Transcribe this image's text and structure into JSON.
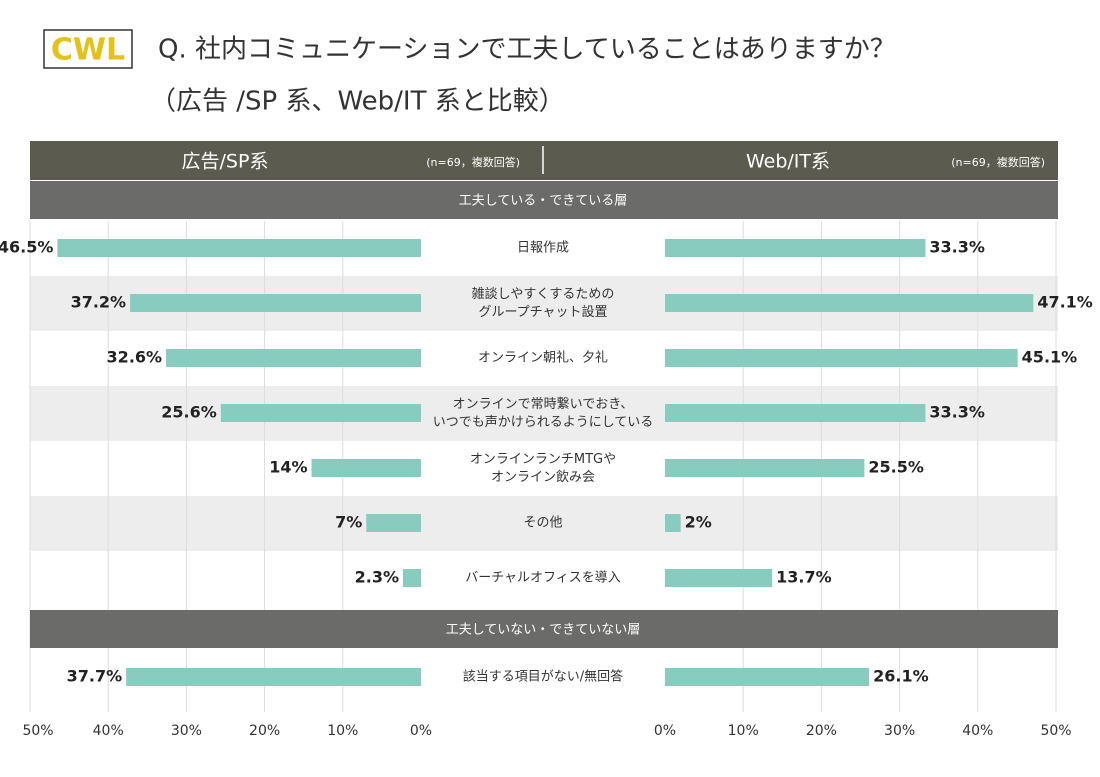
{
  "header": {
    "logo": "CWL",
    "title": "Q. 社内コミュニケーションで工夫していることはありますか？",
    "subtitle": "（広告 /SP 系、Web/IT 系と比較）"
  },
  "chart_data": {
    "type": "butterfly",
    "groups": [
      {
        "label": "工夫している・できている層",
        "categories": [
          "日報作成",
          "雑談しやすくするための\nグループチャット設置",
          "オンライン朝礼、夕礼",
          "オンラインで常時繋いでおき、\nいつでも声かけられるようにしている",
          "オンラインランチMTGや\nオンライン飲み会",
          "その他",
          "バーチャルオフィスを導入"
        ]
      },
      {
        "label": "工夫していない・できていない層",
        "categories": [
          "該当する項目がない/無回答"
        ]
      }
    ],
    "series": [
      {
        "name": "広告/SP系",
        "note": "(n=69，複数回答)",
        "color": "#88cbbf",
        "values": [
          46.5,
          37.2,
          32.6,
          25.6,
          14,
          7,
          2.3,
          37.7
        ],
        "value_labels": [
          "46.5%",
          "37.2%",
          "32.6%",
          "25.6%",
          "14%",
          "7%",
          "2.3%",
          "37.7%"
        ]
      },
      {
        "name": "Web/IT系",
        "note": "(n=69，複数回答)",
        "color": "#88cbbf",
        "values": [
          33.3,
          47.1,
          45.1,
          33.3,
          25.5,
          2,
          13.7,
          26.1
        ],
        "value_labels": [
          "33.3%",
          "47.1%",
          "45.1%",
          "33.3%",
          "25.5%",
          "2%",
          "13.7%",
          "26.1%"
        ]
      }
    ],
    "xlim": [
      0,
      50
    ],
    "xticks": [
      {
        "value": 0,
        "label": "0%"
      },
      {
        "value": 10,
        "label": "10%"
      },
      {
        "value": 20,
        "label": "20%"
      },
      {
        "value": 30,
        "label": "30%"
      },
      {
        "value": 40,
        "label": "40%"
      },
      {
        "value": 50,
        "label": "50%"
      }
    ],
    "grid": true
  }
}
